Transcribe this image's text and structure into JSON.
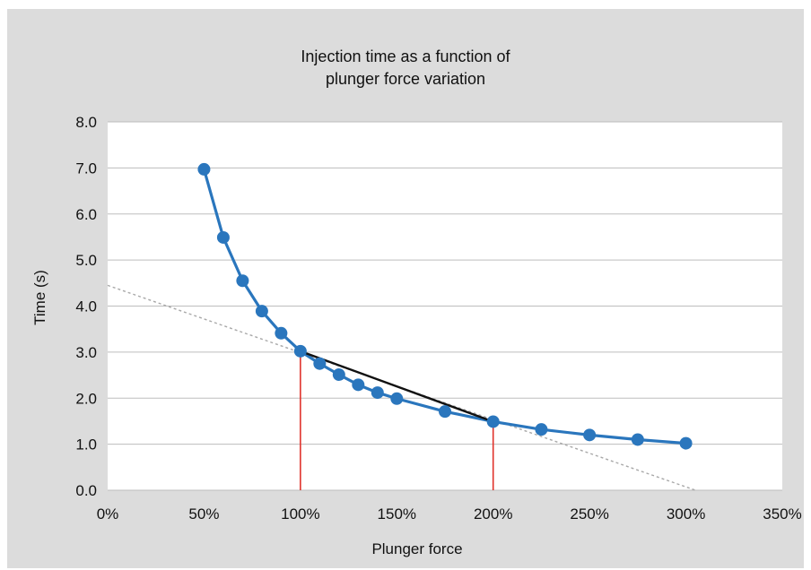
{
  "chart_data": {
    "type": "line",
    "title": "Injection time as a function of\nplunger force variation",
    "xlabel": "Plunger force",
    "ylabel": "Time (s)",
    "xlim": [
      0,
      350
    ],
    "ylim": [
      0,
      8
    ],
    "x_ticks": [
      "0%",
      "50%",
      "100%",
      "150%",
      "200%",
      "250%",
      "300%",
      "350%"
    ],
    "y_ticks": [
      "0.0",
      "1.0",
      "2.0",
      "3.0",
      "4.0",
      "5.0",
      "6.0",
      "7.0",
      "8.0"
    ],
    "grid": true,
    "series": [
      {
        "x": [
          50,
          60,
          70,
          80,
          90,
          100,
          110,
          120,
          130,
          140,
          150,
          175,
          200,
          225,
          250,
          275,
          300
        ],
        "y": [
          6.97,
          5.49,
          4.55,
          3.89,
          3.41,
          3.02,
          2.75,
          2.51,
          2.29,
          2.12,
          1.99,
          1.71,
          1.49,
          1.32,
          1.2,
          1.1,
          1.02
        ],
        "color": "#2a76bd"
      }
    ],
    "annotations": {
      "chord": {
        "x": [
          100,
          200
        ],
        "y": [
          3.02,
          1.49
        ],
        "color": "#111111"
      },
      "tangent": {
        "x": [
          0,
          305
        ],
        "y": [
          4.45,
          0.0
        ],
        "color": "#a8a8a8"
      },
      "vertical_markers": {
        "x": [
          100,
          200
        ],
        "color": "#e0332c"
      }
    },
    "colors": {
      "background": "#dcdcdc",
      "plot_area": "#ffffff",
      "grid": "#bdbdbd"
    }
  }
}
